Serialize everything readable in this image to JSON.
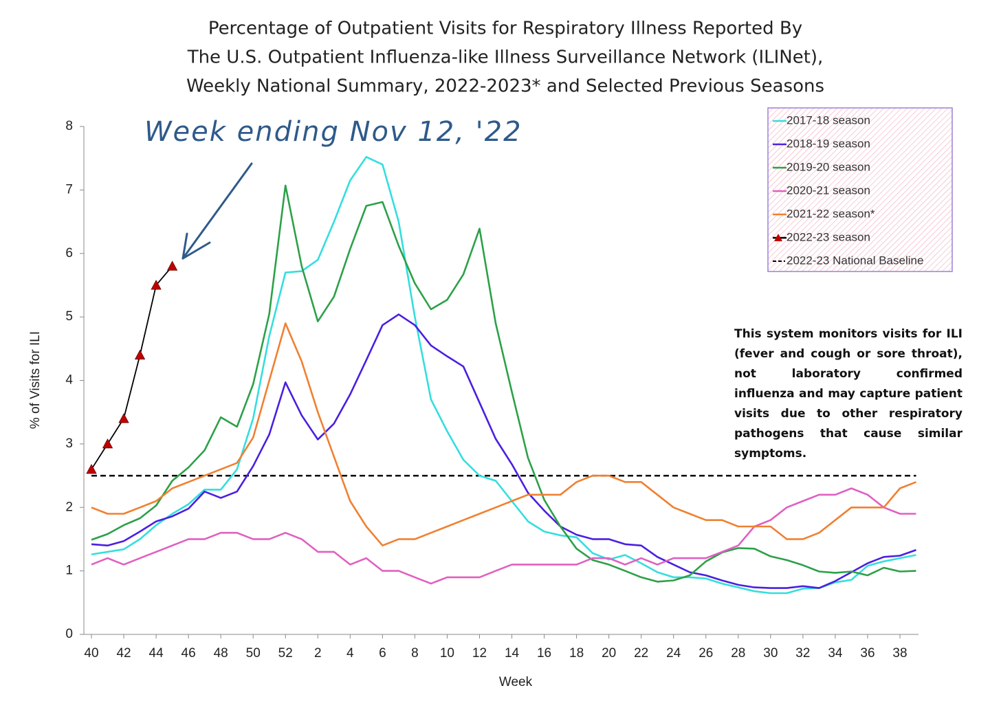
{
  "chart_data": {
    "type": "line",
    "title": [
      "Percentage of Outpatient Visits for Respiratory Illness Reported By",
      "The U.S. Outpatient Influenza-like Illness Surveillance Network (ILINet),",
      "Weekly National Summary, 2022-2023* and Selected Previous Seasons"
    ],
    "annotation": "Week ending Nov 12, '22",
    "note": "This system monitors visits for ILI (fever and cough or sore throat), not laboratory confirmed influenza and may capture patient visits due to other respiratory pathogens that cause similar symptoms.",
    "xlabel": "Week",
    "ylabel": "% of Visits for ILI",
    "categories": [
      "40",
      null,
      "42",
      null,
      "44",
      null,
      "46",
      null,
      "48",
      null,
      "50",
      null,
      "52",
      null,
      "2",
      null,
      "4",
      null,
      "6",
      null,
      "8",
      null,
      "10",
      null,
      "12",
      null,
      "14",
      null,
      "16",
      null,
      "18",
      null,
      "20",
      null,
      "22",
      null,
      "24",
      null,
      "26",
      null,
      "28",
      null,
      "30",
      null,
      "32",
      null,
      "34",
      null,
      "36",
      null,
      "38",
      null
    ],
    "ylim": [
      0,
      8
    ],
    "yticks": [
      0,
      1,
      2,
      3,
      4,
      5,
      6,
      7,
      8
    ],
    "series": [
      {
        "name": "2017-18 season",
        "color": "#33dede",
        "values": [
          1.26,
          1.3,
          1.34,
          1.5,
          1.72,
          1.9,
          2.05,
          2.28,
          2.28,
          2.6,
          3.4,
          4.7,
          5.7,
          5.72,
          5.9,
          6.5,
          7.15,
          7.52,
          7.4,
          6.5,
          5.0,
          3.7,
          3.2,
          2.75,
          2.5,
          2.42,
          2.1,
          1.78,
          1.62,
          1.56,
          1.53,
          1.28,
          1.18,
          1.25,
          1.12,
          0.98,
          0.9,
          0.9,
          0.88,
          0.8,
          0.74,
          0.68,
          0.65,
          0.65,
          0.72,
          0.73,
          0.82,
          0.86,
          1.08,
          1.15,
          1.2,
          1.25
        ]
      },
      {
        "name": "2018-19 season",
        "color": "#4a1fe0",
        "values": [
          1.42,
          1.4,
          1.47,
          1.62,
          1.78,
          1.86,
          1.98,
          2.25,
          2.15,
          2.25,
          2.65,
          3.15,
          3.97,
          3.45,
          3.07,
          3.32,
          3.78,
          4.32,
          4.87,
          5.04,
          4.87,
          4.55,
          4.38,
          4.22,
          3.65,
          3.08,
          2.68,
          2.23,
          1.95,
          1.7,
          1.57,
          1.5,
          1.5,
          1.42,
          1.4,
          1.22,
          1.1,
          0.98,
          0.93,
          0.85,
          0.78,
          0.74,
          0.73,
          0.73,
          0.76,
          0.73,
          0.84,
          0.98,
          1.12,
          1.22,
          1.24,
          1.33
        ]
      },
      {
        "name": "2019-20 season",
        "color": "#2ca048",
        "values": [
          1.49,
          1.58,
          1.72,
          1.83,
          2.03,
          2.42,
          2.63,
          2.9,
          3.42,
          3.27,
          3.94,
          5.05,
          7.07,
          5.8,
          4.93,
          5.32,
          6.07,
          6.75,
          6.81,
          6.12,
          5.53,
          5.12,
          5.27,
          5.67,
          6.39,
          4.9,
          3.82,
          2.78,
          2.12,
          1.7,
          1.35,
          1.17,
          1.1,
          1.0,
          0.9,
          0.83,
          0.85,
          0.93,
          1.15,
          1.29,
          1.36,
          1.35,
          1.23,
          1.17,
          1.09,
          0.99,
          0.97,
          0.99,
          0.93,
          1.05,
          0.99,
          1.0
        ]
      },
      {
        "name": "2020-21 season",
        "color": "#e060c0",
        "values": [
          1.1,
          1.2,
          1.1,
          1.2,
          1.3,
          1.4,
          1.5,
          1.5,
          1.6,
          1.6,
          1.5,
          1.5,
          1.6,
          1.5,
          1.3,
          1.3,
          1.1,
          1.2,
          1.0,
          1.0,
          0.9,
          0.8,
          0.9,
          0.9,
          0.9,
          1.0,
          1.1,
          1.1,
          1.1,
          1.1,
          1.1,
          1.2,
          1.2,
          1.1,
          1.2,
          1.1,
          1.2,
          1.2,
          1.2,
          1.3,
          1.4,
          1.7,
          1.8,
          2.0,
          2.1,
          2.2,
          2.2,
          2.3,
          2.2,
          2.0,
          1.9,
          1.9
        ]
      },
      {
        "name": "2021-22 season*",
        "color": "#f08030",
        "values": [
          2.0,
          1.9,
          1.9,
          2.0,
          2.1,
          2.3,
          2.4,
          2.5,
          2.6,
          2.7,
          3.1,
          4.0,
          4.9,
          4.3,
          3.5,
          2.8,
          2.1,
          1.7,
          1.4,
          1.5,
          1.5,
          1.6,
          1.7,
          1.8,
          1.9,
          2.0,
          2.1,
          2.2,
          2.2,
          2.2,
          2.4,
          2.5,
          2.5,
          2.4,
          2.4,
          2.2,
          2.0,
          1.9,
          1.8,
          1.8,
          1.7,
          1.7,
          1.7,
          1.5,
          1.5,
          1.6,
          1.8,
          2.0,
          2.0,
          2.0,
          2.3,
          2.4
        ]
      },
      {
        "name": "2022-23 season",
        "color": "#000000",
        "marker": "triangle",
        "marker_color": "#c00000",
        "values": [
          2.6,
          3.0,
          3.4,
          4.4,
          5.5,
          5.8,
          null,
          null,
          null,
          null,
          null,
          null,
          null,
          null,
          null,
          null,
          null,
          null,
          null,
          null,
          null,
          null,
          null,
          null,
          null,
          null,
          null,
          null,
          null,
          null,
          null,
          null,
          null,
          null,
          null,
          null,
          null,
          null,
          null,
          null,
          null,
          null,
          null,
          null,
          null,
          null,
          null,
          null,
          null,
          null,
          null,
          null
        ]
      }
    ],
    "reference_line": {
      "name": "2022-23 National Baseline",
      "value": 2.5,
      "color": "#000000"
    },
    "legend": "top-right"
  }
}
